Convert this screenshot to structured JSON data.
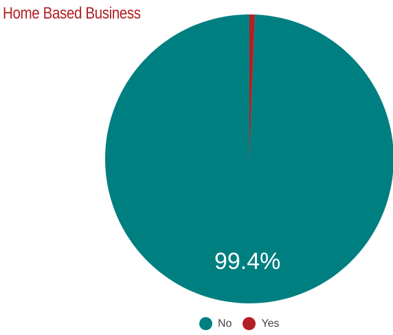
{
  "chart_data": {
    "type": "pie",
    "title": "Home Based Business",
    "title_color": "#b21f24",
    "categories": [
      "No",
      "Yes"
    ],
    "values": [
      99.4,
      0.6
    ],
    "colors": [
      "#007f80",
      "#b21f24"
    ],
    "data_labels": [
      "99.4%",
      ""
    ],
    "legend_position": "bottom"
  }
}
